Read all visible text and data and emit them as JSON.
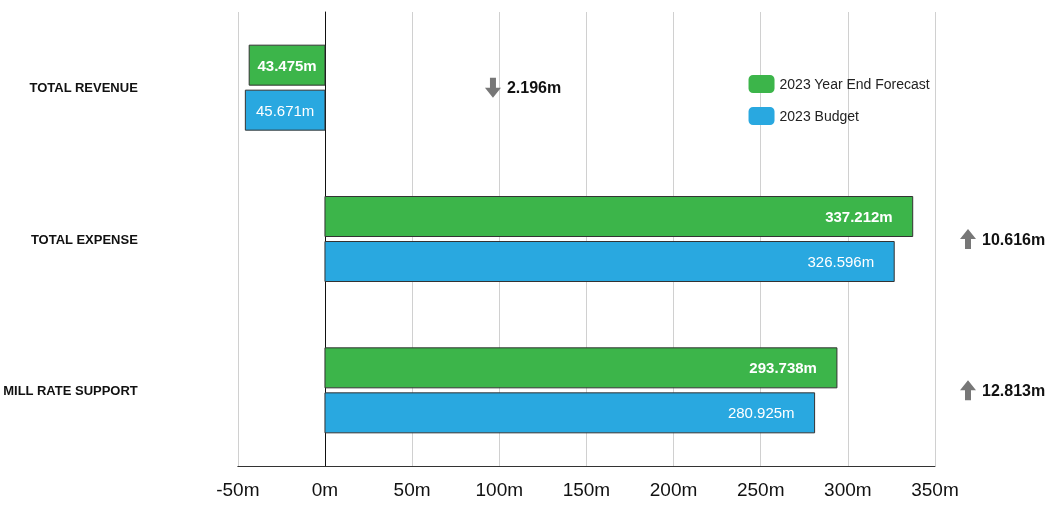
{
  "chart_data": {
    "type": "bar",
    "orientation": "horizontal",
    "categories": [
      "TOTAL REVENUE",
      "TOTAL EXPENSE",
      "MILL RATE SUPPORT"
    ],
    "series": [
      {
        "name": "2023 Year End Forecast",
        "color": "#3cb54a",
        "values": [
          43.475,
          337.212,
          293.738
        ],
        "base": [
          -43.475,
          0,
          0
        ],
        "value_labels": [
          "43.475m",
          "337.212m",
          "293.738m"
        ]
      },
      {
        "name": "2023 Budget",
        "color": "#29a8e0",
        "values": [
          45.671,
          326.596,
          280.925
        ],
        "base": [
          -45.671,
          0,
          0
        ],
        "value_labels": [
          "45.671m",
          "326.596m",
          "280.925m"
        ]
      }
    ],
    "xlim": [
      -50,
      350
    ],
    "xticks": [
      {
        "value": -50,
        "label": "-50m"
      },
      {
        "value": 0,
        "label": "0m"
      },
      {
        "value": 50,
        "label": "50m"
      },
      {
        "value": 100,
        "label": "100m"
      },
      {
        "value": 150,
        "label": "150m"
      },
      {
        "value": 200,
        "label": "200m"
      },
      {
        "value": 250,
        "label": "250m"
      },
      {
        "value": 300,
        "label": "300m"
      },
      {
        "value": 350,
        "label": "350m"
      }
    ],
    "grid": "x",
    "legend": "top right",
    "annotations": [
      "2.196m",
      "10.616m",
      "12.813m"
    ]
  }
}
